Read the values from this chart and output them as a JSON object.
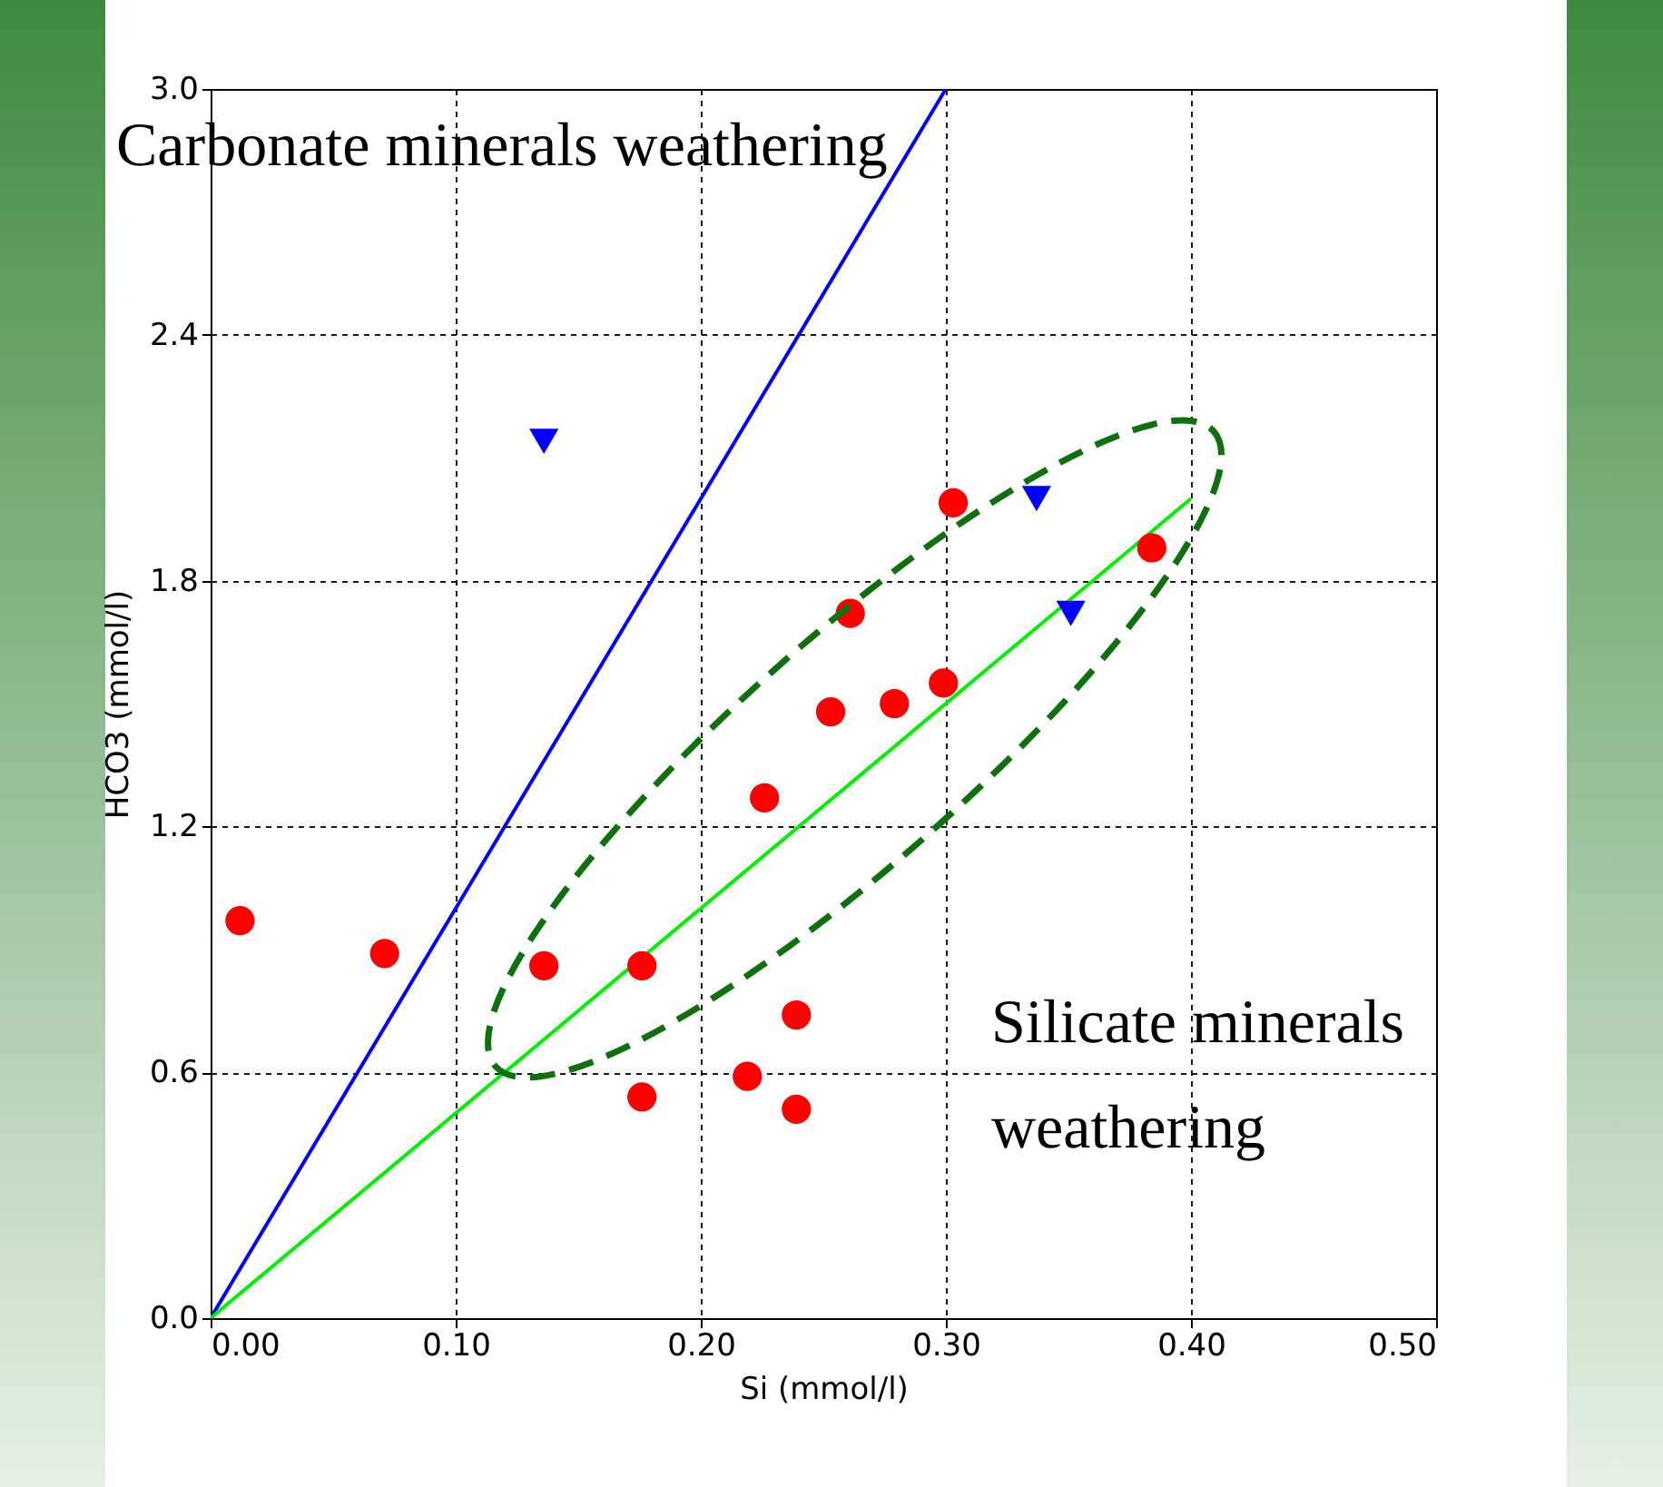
{
  "chart_data": {
    "type": "scatter",
    "xlabel": "Si (mmol/l)",
    "ylabel": "HCO3 (mmol/l)",
    "xlim": [
      0,
      0.5
    ],
    "ylim": [
      0,
      3.0
    ],
    "xticks": [
      {
        "value": 0,
        "label": "0.00"
      },
      {
        "value": 0.1,
        "label": "0.10"
      },
      {
        "value": 0.2,
        "label": "0.20"
      },
      {
        "value": 0.3,
        "label": "0.30"
      },
      {
        "value": 0.4,
        "label": "0.40"
      },
      {
        "value": 0.5,
        "label": "0.50"
      }
    ],
    "yticks": [
      {
        "value": 0,
        "label": "0.0"
      },
      {
        "value": 0.6,
        "label": "0.6"
      },
      {
        "value": 1.2,
        "label": "1.2"
      },
      {
        "value": 1.8,
        "label": "1.8"
      },
      {
        "value": 2.4,
        "label": "2.4"
      },
      {
        "value": 3.0,
        "label": "3.0"
      }
    ],
    "grid": true,
    "series": [
      {
        "type": "line",
        "color": "#0000ff",
        "x": [
          0,
          0.3
        ],
        "values": [
          0,
          3.0
        ],
        "line_style": "solid",
        "marker": "none"
      },
      {
        "type": "line",
        "color": "#00ee00",
        "x": [
          0,
          0.4
        ],
        "values": [
          0,
          2.0
        ],
        "line_style": "solid",
        "marker": "none"
      },
      {
        "type": "scatter",
        "color": "#ff0000",
        "marker": "circle",
        "x": [
          0.012,
          0.071,
          0.136,
          0.176,
          0.176,
          0.219,
          0.239,
          0.239,
          0.226,
          0.253,
          0.261,
          0.279,
          0.299,
          0.303,
          0.384
        ],
        "values": [
          0.97,
          0.89,
          0.86,
          0.86,
          0.54,
          0.59,
          0.74,
          0.51,
          1.27,
          1.48,
          1.72,
          1.5,
          1.55,
          1.99,
          1.88
        ]
      },
      {
        "type": "scatter",
        "color": "#0000ff",
        "marker": "triangle",
        "x": [
          0.136,
          0.337,
          0.351
        ],
        "values": [
          2.14,
          2.0,
          1.72
        ]
      }
    ],
    "annotations": [
      "Carbonate minerals weathering",
      "Silicate minerals weathering"
    ]
  }
}
